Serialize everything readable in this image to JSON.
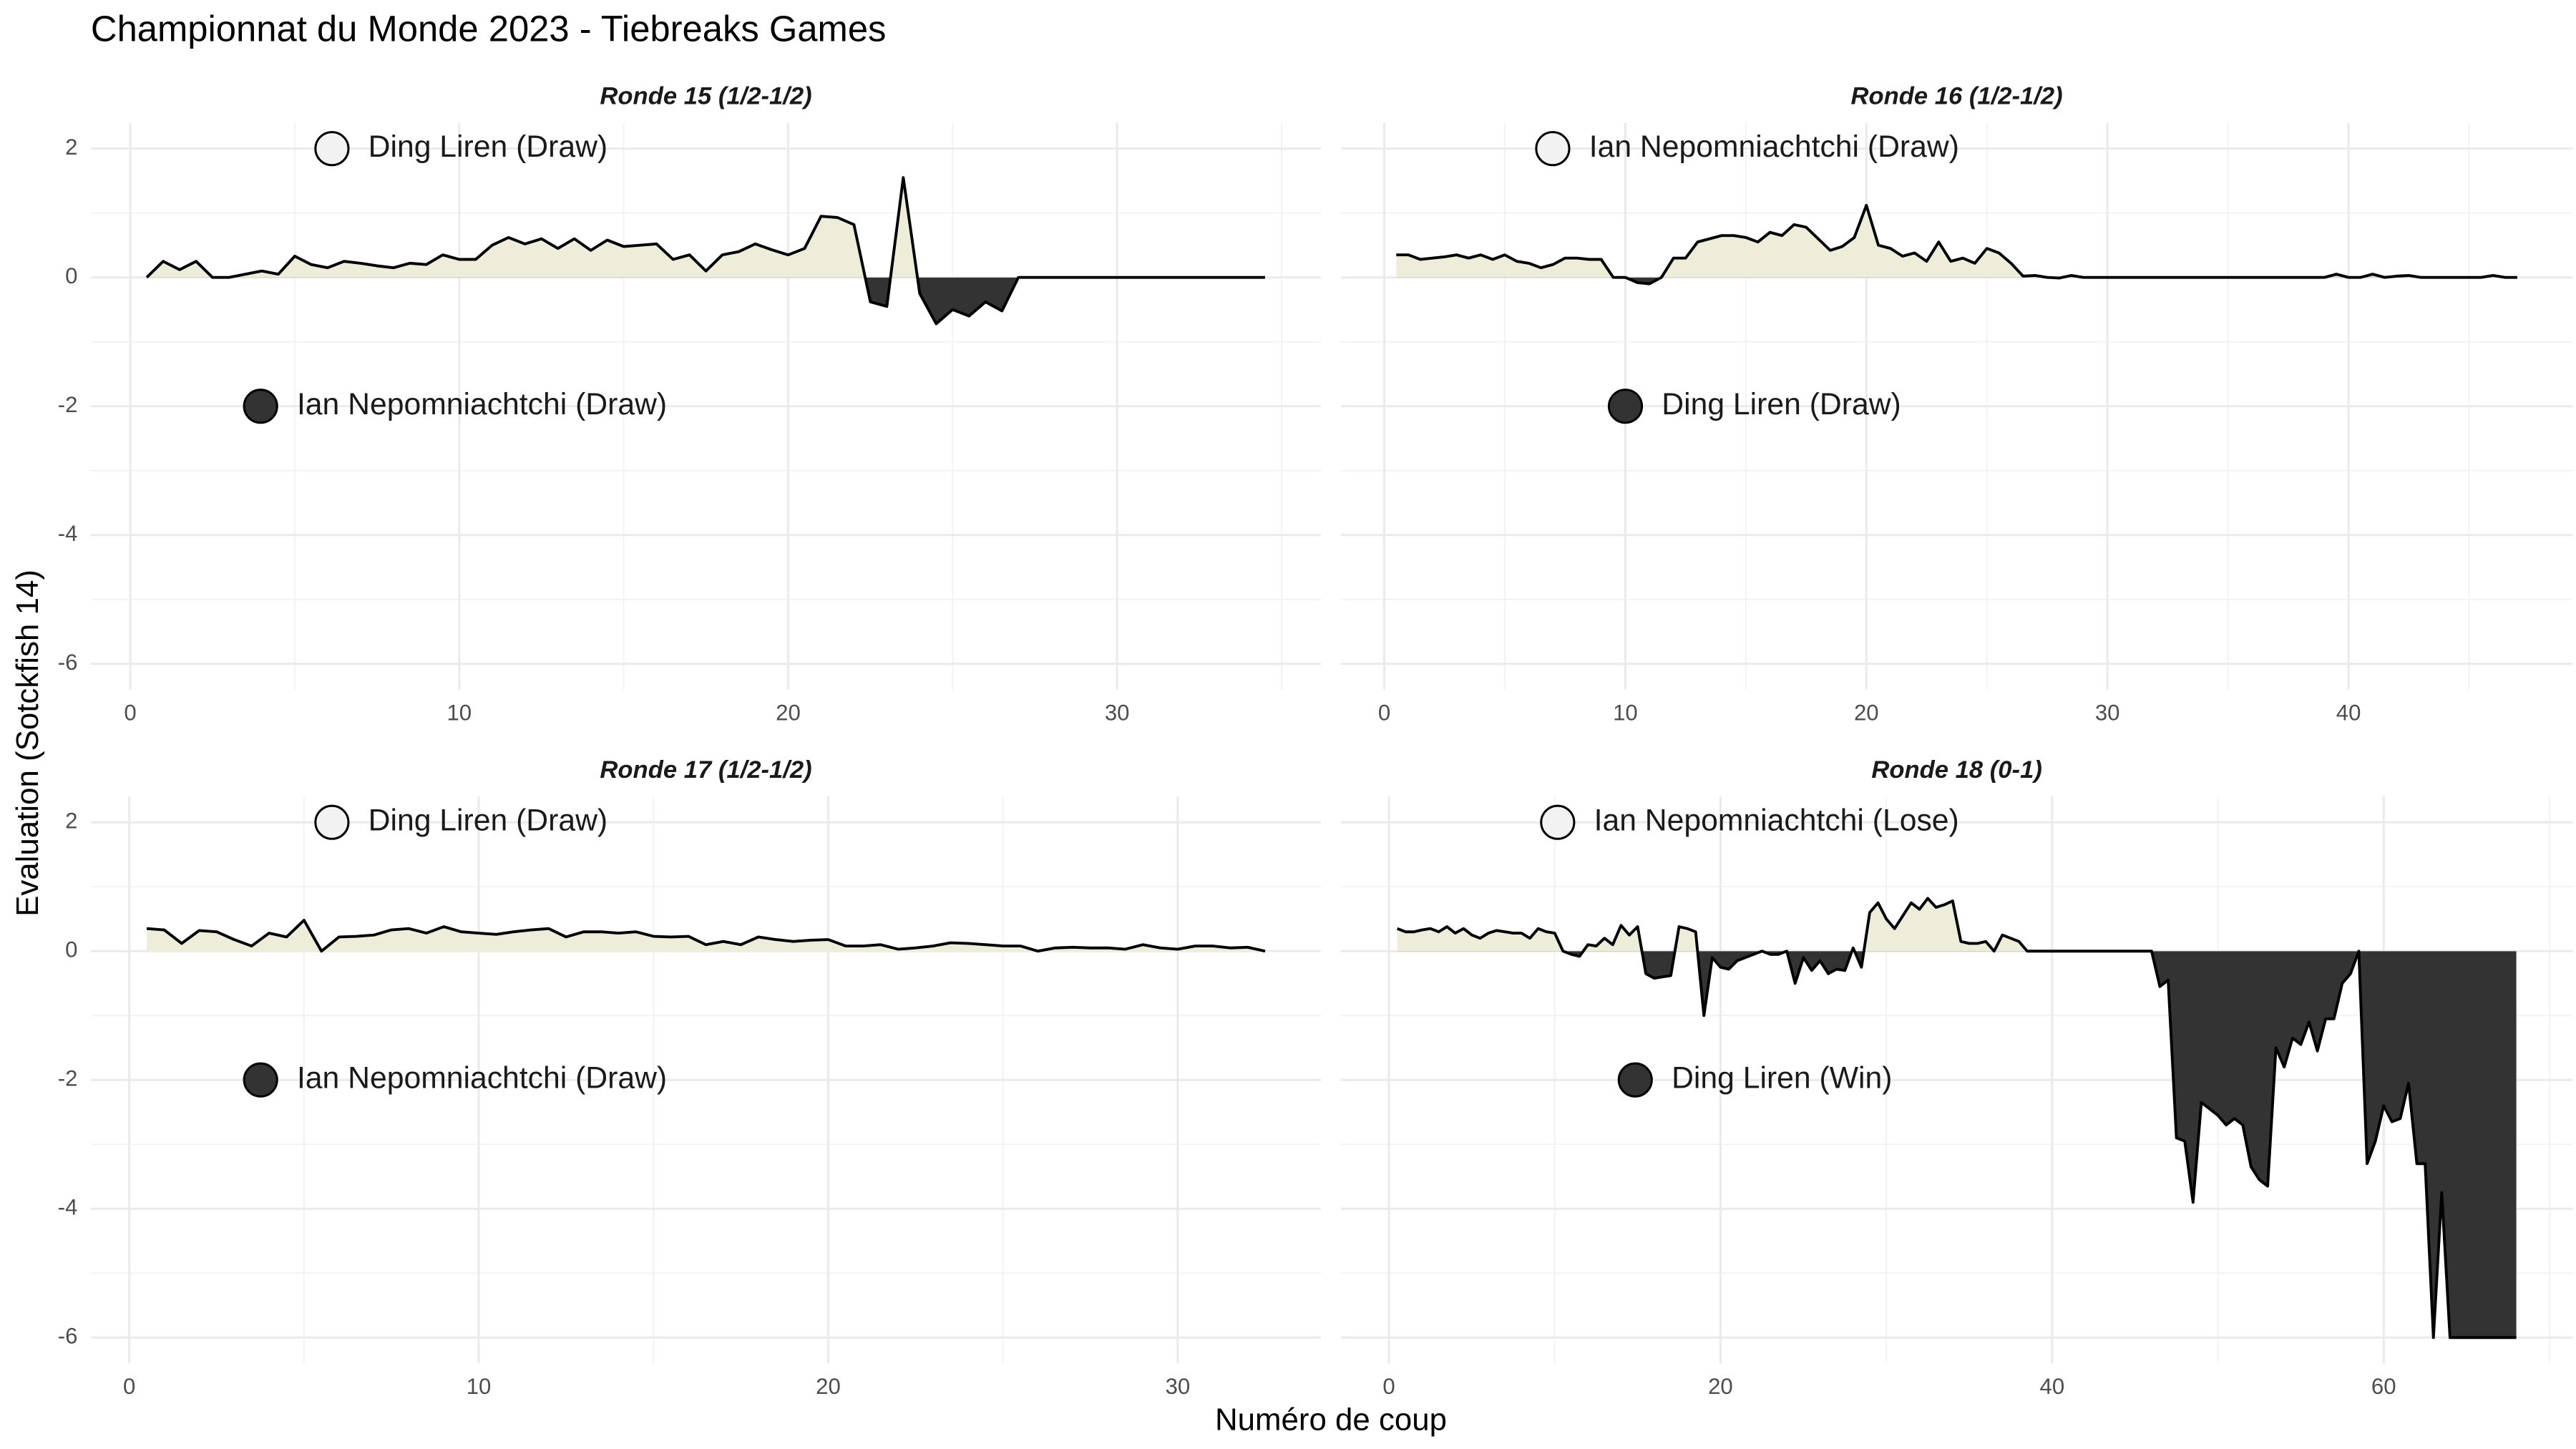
{
  "title": "Championnat du Monde 2023 - Tiebreaks Games",
  "xlabel": "Numéro de coup",
  "ylabel": "Evaluation (Sotckfish 14)",
  "chart_data": [
    {
      "type": "area",
      "title": "Ronde 15 (1/2-1/2)",
      "white_label": "Ding Liren (Draw)",
      "black_label": "Ian Nepomniachtchi (Draw)",
      "x": [
        0.5,
        1,
        1.5,
        2,
        2.5,
        3,
        3.5,
        4,
        4.5,
        5,
        5.5,
        6,
        6.5,
        7,
        7.5,
        8,
        8.5,
        9,
        9.5,
        10,
        10.5,
        11,
        11.5,
        12,
        12.5,
        13,
        13.5,
        14,
        14.5,
        15,
        15.5,
        16,
        16.5,
        17,
        17.5,
        18,
        18.5,
        19,
        19.5,
        20,
        20.5,
        21,
        21.5,
        22,
        22.5,
        23,
        23.5,
        24,
        24.5,
        25,
        25.5,
        26,
        26.5,
        27,
        34.5
      ],
      "values": [
        0,
        0.25,
        0.12,
        0.25,
        0,
        0,
        0.05,
        0.1,
        0.05,
        0.33,
        0.2,
        0.15,
        0.25,
        0.22,
        0.18,
        0.15,
        0.22,
        0.2,
        0.35,
        0.28,
        0.28,
        0.5,
        0.62,
        0.52,
        0.6,
        0.45,
        0.6,
        0.42,
        0.58,
        0.48,
        0.5,
        0.52,
        0.28,
        0.35,
        0.1,
        0.35,
        0.4,
        0.52,
        0.43,
        0.35,
        0.45,
        0.95,
        0.93,
        0.82,
        -0.38,
        -0.45,
        1.55,
        -0.25,
        -0.72,
        -0.5,
        -0.6,
        -0.38,
        -0.52,
        0,
        0
      ],
      "xlim": [
        -1.2,
        36.2
      ],
      "ylim": [
        -6.4,
        2.4
      ],
      "xticks": [
        0,
        10,
        20,
        30
      ],
      "yticks": [
        -6,
        -4,
        -2,
        0,
        2
      ],
      "positive_color": "#eeedd9",
      "negative_color": "#333333",
      "line_color": "#000000",
      "grid": true
    },
    {
      "type": "area",
      "title": "Ronde 16 (1/2-1/2)",
      "white_label": "Ian Nepomniachtchi (Draw)",
      "black_label": "Ding Liren (Draw)",
      "x": [
        0.5,
        1,
        1.5,
        2,
        2.5,
        3,
        3.5,
        4,
        4.5,
        5,
        5.5,
        6,
        6.5,
        7,
        7.5,
        8,
        8.5,
        9,
        9.5,
        10,
        10.5,
        11,
        11.5,
        12,
        12.5,
        13,
        13.5,
        14,
        14.5,
        15,
        15.5,
        16,
        16.5,
        17,
        17.5,
        18,
        18.5,
        19,
        19.5,
        20,
        20.5,
        21,
        21.5,
        22,
        22.5,
        23,
        23.5,
        24,
        24.5,
        25,
        25.5,
        26,
        26.5,
        27,
        27.5,
        28,
        28.5,
        29,
        39,
        39.5,
        40,
        40.5,
        41,
        41.5,
        42,
        42.5,
        43,
        45.5,
        46,
        46.5,
        47
      ],
      "values": [
        0.35,
        0.35,
        0.28,
        0.3,
        0.32,
        0.35,
        0.3,
        0.35,
        0.28,
        0.35,
        0.25,
        0.22,
        0.15,
        0.2,
        0.3,
        0.3,
        0.28,
        0.28,
        0,
        0,
        -0.08,
        -0.1,
        0,
        0.3,
        0.3,
        0.55,
        0.6,
        0.65,
        0.65,
        0.62,
        0.55,
        0.7,
        0.65,
        0.82,
        0.78,
        0.6,
        0.42,
        0.48,
        0.62,
        1.12,
        0.5,
        0.45,
        0.33,
        0.38,
        0.25,
        0.55,
        0.25,
        0.3,
        0.22,
        0.45,
        0.38,
        0.22,
        0.02,
        0.03,
        0,
        -0.01,
        0.03,
        0,
        0,
        0.05,
        0,
        0,
        0.05,
        0,
        0.02,
        0.03,
        0,
        0,
        0.03,
        0,
        0
      ],
      "xlim": [
        -1.8,
        49.3
      ],
      "ylim": [
        -6.4,
        2.4
      ],
      "xticks": [
        0,
        10,
        20,
        30,
        40
      ],
      "yticks": [
        -6,
        -4,
        -2,
        0,
        2
      ],
      "positive_color": "#eeedd9",
      "negative_color": "#333333",
      "line_color": "#000000",
      "grid": true
    },
    {
      "type": "area",
      "title": "Ronde 17 (1/2-1/2)",
      "white_label": "Ding Liren (Draw)",
      "black_label": "Ian Nepomniachtchi (Draw)",
      "x": [
        0.5,
        1,
        1.5,
        2,
        2.5,
        3,
        3.5,
        4,
        4.5,
        5,
        5.5,
        6,
        6.5,
        7,
        7.5,
        8,
        8.5,
        9,
        9.5,
        10,
        10.5,
        11,
        11.5,
        12,
        12.5,
        13,
        13.5,
        14,
        14.5,
        15,
        15.5,
        16,
        16.5,
        17,
        17.5,
        18,
        18.5,
        19,
        19.5,
        20,
        20.5,
        21,
        21.5,
        22,
        22.5,
        23,
        23.5,
        24,
        24.5,
        25,
        25.5,
        26,
        26.5,
        27,
        27.5,
        28,
        28.5,
        29,
        29.5,
        30,
        30.5,
        31,
        31.5,
        32,
        32.5
      ],
      "values": [
        0.35,
        0.33,
        0.12,
        0.32,
        0.3,
        0.18,
        0.08,
        0.28,
        0.22,
        0.48,
        0,
        0.22,
        0.23,
        0.25,
        0.33,
        0.35,
        0.28,
        0.38,
        0.3,
        0.28,
        0.26,
        0.3,
        0.33,
        0.35,
        0.22,
        0.3,
        0.3,
        0.28,
        0.3,
        0.23,
        0.22,
        0.23,
        0.1,
        0.15,
        0.1,
        0.22,
        0.18,
        0.15,
        0.17,
        0.18,
        0.08,
        0.08,
        0.1,
        0.03,
        0.05,
        0.08,
        0.13,
        0.12,
        0.1,
        0.08,
        0.08,
        0,
        0.05,
        0.06,
        0.05,
        0.05,
        0.03,
        0.1,
        0.05,
        0.03,
        0.08,
        0.08,
        0.05,
        0.06,
        0
      ],
      "xlim": [
        -1.1,
        34.1
      ],
      "ylim": [
        -6.4,
        2.4
      ],
      "xticks": [
        0,
        10,
        20,
        30
      ],
      "yticks": [
        -6,
        -4,
        -2,
        0,
        2
      ],
      "positive_color": "#eeedd9",
      "negative_color": "#333333",
      "line_color": "#000000",
      "grid": true
    },
    {
      "type": "area",
      "title": "Ronde 18 (0-1)",
      "white_label": "Ian Nepomniachtchi (Lose)",
      "black_label": "Ding Liren (Win)",
      "x": [
        0.5,
        1,
        1.5,
        2,
        2.5,
        3,
        3.5,
        4,
        4.5,
        5,
        5.5,
        6,
        6.5,
        7,
        7.5,
        8,
        8.5,
        9,
        9.5,
        10,
        10.5,
        11,
        11.5,
        12,
        12.5,
        13,
        13.5,
        14,
        14.5,
        15,
        15.5,
        16,
        16.5,
        17,
        17.5,
        18,
        18.5,
        19,
        19.5,
        20,
        20.5,
        21,
        21.5,
        22,
        22.5,
        23,
        23.5,
        24,
        24.5,
        25,
        25.5,
        26,
        26.5,
        27,
        27.5,
        28,
        28.5,
        29,
        29.5,
        30,
        30.5,
        31,
        31.5,
        32,
        32.5,
        33,
        33.5,
        34,
        34.5,
        35,
        35.5,
        36,
        36.5,
        37,
        37.5,
        38,
        38.5,
        46,
        46.5,
        47,
        47.5,
        48,
        48.5,
        49,
        49.5,
        50,
        50.5,
        51,
        51.5,
        52,
        52.5,
        53,
        53.5,
        54,
        54.5,
        55,
        55.5,
        56,
        56.5,
        57,
        57.5,
        58,
        58.5,
        59,
        59.5,
        60,
        60.5,
        61,
        61.5,
        62,
        62.5,
        63,
        63.5,
        64,
        68
      ],
      "values": [
        0.35,
        0.3,
        0.3,
        0.33,
        0.35,
        0.3,
        0.38,
        0.28,
        0.35,
        0.25,
        0.2,
        0.28,
        0.32,
        0.3,
        0.28,
        0.28,
        0.2,
        0.35,
        0.3,
        0.28,
        0,
        -0.05,
        -0.08,
        0.1,
        0.08,
        0.2,
        0.1,
        0.4,
        0.25,
        0.38,
        -0.35,
        -0.42,
        -0.4,
        -0.38,
        0.38,
        0.35,
        0.3,
        -1,
        -0.1,
        -0.25,
        -0.28,
        -0.15,
        -0.1,
        -0.05,
        0,
        -0.05,
        -0.05,
        0,
        -0.5,
        -0.1,
        -0.3,
        -0.15,
        -0.35,
        -0.28,
        -0.3,
        0.05,
        -0.25,
        0.6,
        0.75,
        0.5,
        0.35,
        0.55,
        0.75,
        0.65,
        0.82,
        0.68,
        0.72,
        0.78,
        0.15,
        0.12,
        0.12,
        0.15,
        0,
        0.25,
        0.2,
        0.15,
        0,
        0,
        -0.55,
        -0.45,
        -2.9,
        -2.95,
        -3.9,
        -2.35,
        -2.45,
        -2.55,
        -2.7,
        -2.6,
        -2.7,
        -3.35,
        -3.55,
        -3.65,
        -1.5,
        -1.8,
        -1.35,
        -1.45,
        -1.1,
        -1.55,
        -1.05,
        -1.05,
        -0.5,
        -0.35,
        0,
        -3.3,
        -2.95,
        -2.4,
        -2.65,
        -2.6,
        -2.05,
        -3.3,
        -3.3,
        -6,
        -3.75,
        -6,
        -6
      ],
      "xlim": [
        -2.9,
        71.4
      ],
      "ylim": [
        -6.4,
        2.4
      ],
      "xticks": [
        0,
        20,
        40,
        60
      ],
      "yticks": [
        -6,
        -4,
        -2,
        0,
        2
      ],
      "positive_color": "#eeedd9",
      "negative_color": "#333333",
      "line_color": "#000000",
      "grid": true
    }
  ]
}
